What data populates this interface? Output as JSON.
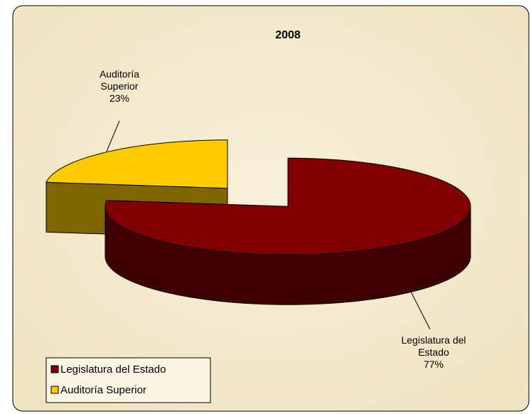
{
  "chart_data": {
    "type": "pie",
    "title": "2008",
    "categories": [
      "Legislatura del Estado",
      "Auditoría Superior"
    ],
    "values": [
      77,
      23
    ],
    "value_labels": [
      "77%",
      "23%"
    ],
    "colors": [
      "#800000",
      "#ffcc00"
    ],
    "side_colors": [
      "#400000",
      "#806600"
    ],
    "legend": "bottom-left"
  }
}
